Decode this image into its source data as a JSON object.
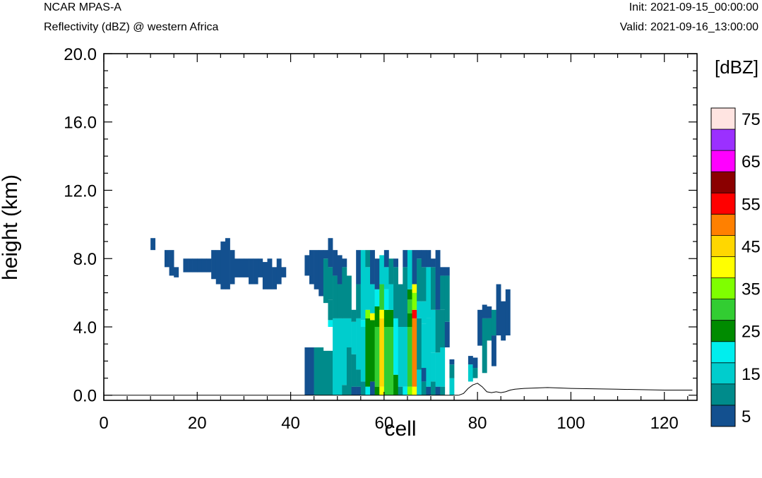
{
  "header": {
    "model": "NCAR MPAS-A",
    "field": "Reflectivity (dBZ) @ western Africa",
    "init": "Init: 2021-09-15_00:00:00",
    "valid": "Valid: 2021-09-16_13:00:00"
  },
  "chart_data": {
    "type": "heatmap",
    "xlabel": "cell",
    "ylabel": "height (km)",
    "xlim": [
      0,
      127
    ],
    "ylim": [
      -0.3,
      20.0
    ],
    "x_ticks": [
      0,
      20,
      40,
      60,
      80,
      100,
      120
    ],
    "y_ticks": [
      0.0,
      4.0,
      8.0,
      12.0,
      16.0,
      20.0
    ],
    "y_tick_labels": [
      "0.0",
      "4.0",
      "8.0",
      "12.0",
      "16.0",
      "20.0"
    ],
    "colorbar": {
      "unit": "[dBZ]",
      "levels": [
        5,
        10,
        15,
        20,
        25,
        30,
        35,
        40,
        45,
        50,
        55,
        60,
        65,
        70,
        75
      ],
      "labels": [
        "5",
        "15",
        "25",
        "35",
        "45",
        "55",
        "65",
        "75"
      ],
      "colors": [
        "#13508f",
        "#008b8b",
        "#00cdcd",
        "#00eeee",
        "#008b00",
        "#32cd32",
        "#7fff00",
        "#ffff00",
        "#ffd700",
        "#ff8000",
        "#ff0000",
        "#8b0000",
        "#ff00ff",
        "#9b30ff",
        "#ffe4e1"
      ]
    },
    "terrain": [
      [
        76,
        0.0
      ],
      [
        77,
        0.1
      ],
      [
        78,
        0.4
      ],
      [
        79,
        0.6
      ],
      [
        80,
        0.7
      ],
      [
        81,
        0.5
      ],
      [
        82,
        0.2
      ],
      [
        83,
        0.15
      ],
      [
        84,
        0.2
      ],
      [
        85,
        0.15
      ],
      [
        86,
        0.2
      ],
      [
        87,
        0.3
      ],
      [
        88,
        0.35
      ],
      [
        90,
        0.4
      ],
      [
        95,
        0.45
      ],
      [
        100,
        0.4
      ],
      [
        110,
        0.35
      ],
      [
        120,
        0.3
      ],
      [
        126,
        0.3
      ]
    ],
    "columns": [
      {
        "x": 10,
        "segs": [
          [
            8.5,
            9.2,
            5
          ]
        ]
      },
      {
        "x": 13,
        "segs": [
          [
            7.5,
            8.5,
            5
          ]
        ]
      },
      {
        "x": 14,
        "segs": [
          [
            7.0,
            8.5,
            5
          ]
        ]
      },
      {
        "x": 15,
        "segs": [
          [
            6.9,
            7.5,
            5
          ]
        ]
      },
      {
        "x": 17,
        "segs": [
          [
            7.2,
            8.0,
            5
          ]
        ]
      },
      {
        "x": 18,
        "segs": [
          [
            7.2,
            8.0,
            5
          ]
        ]
      },
      {
        "x": 19,
        "segs": [
          [
            7.2,
            8.0,
            5
          ]
        ]
      },
      {
        "x": 20,
        "segs": [
          [
            7.2,
            8.0,
            5
          ]
        ]
      },
      {
        "x": 21,
        "segs": [
          [
            7.2,
            8.0,
            5
          ]
        ]
      },
      {
        "x": 22,
        "segs": [
          [
            7.2,
            8.0,
            5
          ]
        ]
      },
      {
        "x": 23,
        "segs": [
          [
            6.8,
            8.5,
            5
          ]
        ]
      },
      {
        "x": 24,
        "segs": [
          [
            6.5,
            8.5,
            5
          ]
        ]
      },
      {
        "x": 25,
        "segs": [
          [
            6.2,
            9.0,
            5
          ]
        ]
      },
      {
        "x": 26,
        "segs": [
          [
            6.2,
            9.2,
            5
          ]
        ]
      },
      {
        "x": 27,
        "segs": [
          [
            6.5,
            8.5,
            5
          ]
        ]
      },
      {
        "x": 28,
        "segs": [
          [
            6.9,
            8.0,
            5
          ]
        ]
      },
      {
        "x": 29,
        "segs": [
          [
            6.9,
            8.0,
            5
          ]
        ]
      },
      {
        "x": 30,
        "segs": [
          [
            6.9,
            8.0,
            5
          ]
        ]
      },
      {
        "x": 31,
        "segs": [
          [
            6.5,
            8.0,
            5
          ]
        ]
      },
      {
        "x": 32,
        "segs": [
          [
            6.5,
            8.0,
            5
          ]
        ]
      },
      {
        "x": 33,
        "segs": [
          [
            6.9,
            8.0,
            5
          ]
        ]
      },
      {
        "x": 34,
        "segs": [
          [
            6.2,
            7.8,
            5
          ]
        ]
      },
      {
        "x": 35,
        "segs": [
          [
            6.2,
            8.0,
            5
          ]
        ]
      },
      {
        "x": 36,
        "segs": [
          [
            6.2,
            7.5,
            5
          ]
        ]
      },
      {
        "x": 37,
        "segs": [
          [
            6.5,
            8.0,
            5
          ]
        ]
      },
      {
        "x": 38,
        "segs": [
          [
            6.9,
            7.5,
            5
          ]
        ]
      },
      {
        "x": 43,
        "segs": [
          [
            0.0,
            2.8,
            5
          ],
          [
            7.0,
            8.2,
            5
          ]
        ]
      },
      {
        "x": 44,
        "segs": [
          [
            0.0,
            2.8,
            5
          ],
          [
            6.5,
            8.5,
            5
          ]
        ]
      },
      {
        "x": 45,
        "segs": [
          [
            0.0,
            2.8,
            10
          ],
          [
            6.2,
            8.5,
            5
          ]
        ]
      },
      {
        "x": 46,
        "segs": [
          [
            0.0,
            2.8,
            10
          ],
          [
            5.8,
            8.5,
            5
          ]
        ]
      },
      {
        "x": 47,
        "segs": [
          [
            0.0,
            2.6,
            10
          ],
          [
            5.4,
            8.0,
            10
          ],
          [
            8.0,
            8.5,
            5
          ]
        ]
      },
      {
        "x": 48,
        "segs": [
          [
            0.0,
            2.6,
            10
          ],
          [
            4.0,
            4.4,
            20
          ],
          [
            4.4,
            5.6,
            10
          ],
          [
            5.6,
            7.5,
            10
          ],
          [
            7.5,
            9.2,
            5
          ]
        ]
      },
      {
        "x": 49,
        "segs": [
          [
            0.0,
            4.5,
            15
          ],
          [
            4.5,
            7.0,
            10
          ],
          [
            7.0,
            8.5,
            5
          ]
        ]
      },
      {
        "x": 50,
        "segs": [
          [
            0.0,
            4.5,
            15
          ],
          [
            4.5,
            6.5,
            10
          ],
          [
            6.5,
            8.2,
            5
          ]
        ]
      },
      {
        "x": 51,
        "segs": [
          [
            0.0,
            0.6,
            10
          ],
          [
            0.6,
            4.5,
            15
          ],
          [
            4.5,
            7.5,
            10
          ],
          [
            7.5,
            8.0,
            5
          ]
        ]
      },
      {
        "x": 52,
        "segs": [
          [
            0.0,
            2.8,
            10
          ],
          [
            2.8,
            4.5,
            15
          ],
          [
            4.5,
            7.0,
            10
          ]
        ]
      },
      {
        "x": 53,
        "segs": [
          [
            0.0,
            0.5,
            5
          ],
          [
            0.5,
            2.4,
            10
          ],
          [
            2.4,
            4.3,
            15
          ],
          [
            4.3,
            5.0,
            10
          ]
        ]
      },
      {
        "x": 54,
        "segs": [
          [
            0.0,
            0.5,
            5
          ],
          [
            0.5,
            1.5,
            10
          ],
          [
            1.5,
            4.5,
            15
          ],
          [
            4.5,
            6.5,
            10
          ],
          [
            6.5,
            8.5,
            5
          ]
        ]
      },
      {
        "x": 55,
        "segs": [
          [
            0.0,
            0.8,
            10
          ],
          [
            0.8,
            4.0,
            15
          ],
          [
            4.0,
            4.4,
            20
          ],
          [
            4.4,
            8.5,
            15
          ]
        ]
      },
      {
        "x": 56,
        "segs": [
          [
            0.0,
            0.5,
            20
          ],
          [
            0.5,
            4.5,
            25
          ],
          [
            4.5,
            5.0,
            35
          ],
          [
            5.0,
            7.5,
            15
          ],
          [
            7.5,
            8.5,
            10
          ]
        ]
      },
      {
        "x": 57,
        "segs": [
          [
            0.0,
            0.8,
            5
          ],
          [
            0.8,
            4.4,
            25
          ],
          [
            4.4,
            4.8,
            40
          ],
          [
            4.8,
            6.5,
            15
          ],
          [
            6.5,
            8.5,
            5
          ]
        ]
      },
      {
        "x": 58,
        "segs": [
          [
            0.0,
            0.5,
            25
          ],
          [
            0.5,
            4.0,
            30
          ],
          [
            4.0,
            5.2,
            25
          ],
          [
            5.2,
            6.2,
            20
          ],
          [
            6.2,
            8.0,
            5
          ]
        ]
      },
      {
        "x": 59,
        "segs": [
          [
            0.0,
            0.5,
            40
          ],
          [
            0.5,
            4.5,
            45
          ],
          [
            4.5,
            5.0,
            40
          ],
          [
            5.0,
            6.5,
            30
          ],
          [
            6.5,
            8.2,
            15
          ]
        ]
      },
      {
        "x": 60,
        "segs": [
          [
            0.0,
            4.0,
            30
          ],
          [
            4.0,
            5.0,
            25
          ],
          [
            5.0,
            6.2,
            20
          ],
          [
            6.2,
            7.5,
            15
          ],
          [
            7.5,
            8.5,
            5
          ]
        ]
      },
      {
        "x": 61,
        "segs": [
          [
            0.0,
            4.0,
            30
          ],
          [
            4.0,
            5.0,
            25
          ],
          [
            5.0,
            6.5,
            15
          ],
          [
            6.5,
            8.0,
            10
          ]
        ]
      },
      {
        "x": 62,
        "segs": [
          [
            0.0,
            1.2,
            25
          ],
          [
            1.2,
            4.5,
            20
          ],
          [
            4.5,
            7.5,
            10
          ],
          [
            7.5,
            8.0,
            5
          ]
        ]
      },
      {
        "x": 63,
        "segs": [
          [
            0.0,
            0.5,
            10
          ],
          [
            0.5,
            4.0,
            15
          ],
          [
            4.0,
            6.5,
            10
          ]
        ]
      },
      {
        "x": 64,
        "segs": [
          [
            0.0,
            0.5,
            20
          ],
          [
            0.5,
            4.0,
            15
          ],
          [
            4.0,
            7.5,
            10
          ],
          [
            7.5,
            8.5,
            5
          ]
        ]
      },
      {
        "x": 65,
        "segs": [
          [
            0.0,
            0.5,
            35
          ],
          [
            0.5,
            4.0,
            30
          ],
          [
            4.0,
            4.8,
            25
          ],
          [
            4.8,
            5.6,
            30
          ],
          [
            5.6,
            6.2,
            25
          ],
          [
            6.2,
            8.5,
            15
          ]
        ]
      },
      {
        "x": 66,
        "segs": [
          [
            0.0,
            0.5,
            40
          ],
          [
            0.5,
            4.5,
            50
          ],
          [
            4.5,
            5.0,
            55
          ],
          [
            5.0,
            6.0,
            35
          ],
          [
            6.0,
            6.5,
            40
          ],
          [
            6.5,
            8.5,
            5
          ]
        ]
      },
      {
        "x": 67,
        "segs": [
          [
            0.0,
            1.5,
            15
          ],
          [
            1.5,
            4.5,
            10
          ],
          [
            4.5,
            5.5,
            15
          ],
          [
            5.5,
            8.0,
            10
          ],
          [
            8.0,
            8.5,
            5
          ]
        ]
      },
      {
        "x": 68,
        "segs": [
          [
            0.0,
            0.8,
            10
          ],
          [
            0.8,
            1.6,
            5
          ],
          [
            1.6,
            4.2,
            15
          ],
          [
            4.2,
            5.5,
            15
          ],
          [
            5.5,
            7.5,
            10
          ],
          [
            7.5,
            8.5,
            5
          ]
        ]
      },
      {
        "x": 69,
        "segs": [
          [
            0.0,
            0.5,
            5
          ],
          [
            0.5,
            4.5,
            15
          ],
          [
            4.5,
            7.5,
            15
          ],
          [
            7.5,
            8.5,
            5
          ]
        ]
      },
      {
        "x": 70,
        "segs": [
          [
            0.0,
            0.8,
            10
          ],
          [
            0.8,
            2.5,
            15
          ],
          [
            2.5,
            5.0,
            15
          ],
          [
            5.0,
            7.5,
            10
          ],
          [
            7.5,
            8.0,
            5
          ]
        ]
      },
      {
        "x": 71,
        "segs": [
          [
            0.0,
            0.5,
            5
          ],
          [
            0.5,
            2.5,
            15
          ],
          [
            2.5,
            5.0,
            10
          ],
          [
            5.0,
            8.5,
            5
          ]
        ]
      },
      {
        "x": 72,
        "segs": [
          [
            0.0,
            0.5,
            10
          ],
          [
            0.5,
            2.8,
            15
          ],
          [
            2.8,
            5.0,
            10
          ],
          [
            5.0,
            7.0,
            10
          ],
          [
            7.0,
            7.5,
            5
          ]
        ]
      },
      {
        "x": 73,
        "segs": [
          [
            2.8,
            4.3,
            5
          ],
          [
            4.3,
            7.0,
            10
          ],
          [
            7.0,
            7.5,
            5
          ]
        ]
      },
      {
        "x": 74,
        "segs": [
          [
            0.0,
            1.0,
            15
          ],
          [
            1.0,
            1.8,
            10
          ],
          [
            1.8,
            2.1,
            5
          ]
        ]
      },
      {
        "x": 78,
        "segs": [
          [
            0.8,
            1.8,
            15
          ],
          [
            1.8,
            2.3,
            5
          ]
        ]
      },
      {
        "x": 79,
        "segs": [
          [
            1.0,
            1.6,
            10
          ],
          [
            1.6,
            2.2,
            5
          ]
        ]
      },
      {
        "x": 80,
        "segs": [
          [
            2.9,
            5.0,
            5
          ]
        ]
      },
      {
        "x": 81,
        "segs": [
          [
            1.3,
            4.5,
            10
          ],
          [
            4.5,
            5.3,
            5
          ]
        ]
      },
      {
        "x": 82,
        "segs": [
          [
            3.2,
            4.5,
            10
          ],
          [
            4.5,
            5.2,
            5
          ]
        ]
      },
      {
        "x": 83,
        "segs": [
          [
            1.7,
            3.5,
            5
          ],
          [
            3.5,
            5.0,
            10
          ]
        ]
      },
      {
        "x": 84,
        "segs": [
          [
            3.5,
            6.5,
            5
          ]
        ]
      },
      {
        "x": 85,
        "segs": [
          [
            3.2,
            5.5,
            5
          ]
        ]
      },
      {
        "x": 86,
        "segs": [
          [
            3.5,
            6.2,
            5
          ]
        ]
      }
    ]
  }
}
